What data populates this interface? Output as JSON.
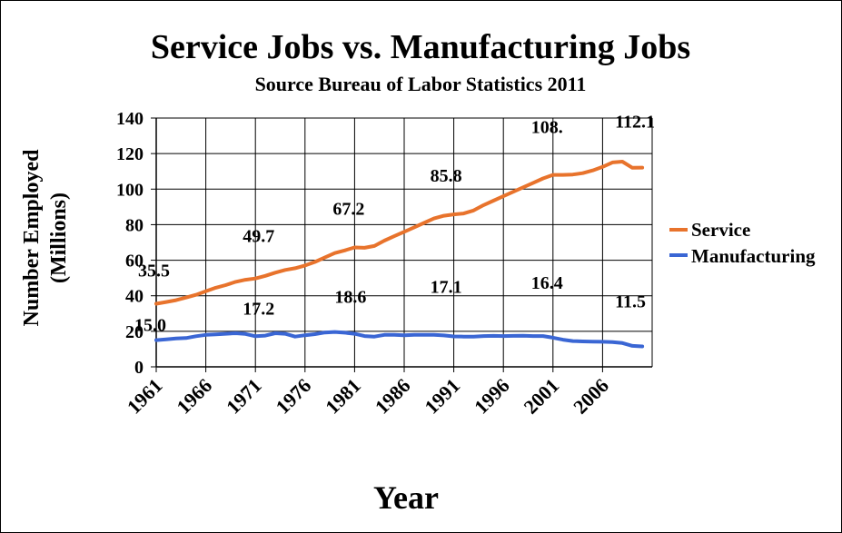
{
  "chart_data": {
    "type": "line",
    "title": "Service Jobs vs. Manufacturing Jobs",
    "subtitle": "Source Bureau of Labor Statistics 2011",
    "xlabel": "Year",
    "ylabel": "Number Employed (Millions)",
    "ylabel_lines": [
      "Number Employed",
      "(Millions)"
    ],
    "ylim": [
      0,
      140
    ],
    "yticks": [
      "0",
      "20",
      "40",
      "60",
      "80",
      "100",
      "120",
      "140"
    ],
    "xlim": [
      1961,
      2011
    ],
    "xticks": [
      "1961",
      "1966",
      "1971",
      "1976",
      "1981",
      "1986",
      "1991",
      "1996",
      "2001",
      "2006"
    ],
    "grid": true,
    "legend_position": "right",
    "x": [
      1961,
      1962,
      1963,
      1964,
      1965,
      1966,
      1967,
      1968,
      1969,
      1970,
      1971,
      1972,
      1973,
      1974,
      1975,
      1976,
      1977,
      1978,
      1979,
      1980,
      1981,
      1982,
      1983,
      1984,
      1985,
      1986,
      1987,
      1988,
      1989,
      1990,
      1991,
      1992,
      1993,
      1994,
      1995,
      1996,
      1997,
      1998,
      1999,
      2000,
      2001,
      2002,
      2003,
      2004,
      2005,
      2006,
      2007,
      2008,
      2009,
      2010
    ],
    "series": [
      {
        "name": "Service",
        "color": "#e8732c",
        "values": [
          35.5,
          36.5,
          37.5,
          39.0,
          40.5,
          42.5,
          44.5,
          46.0,
          47.8,
          49.0,
          49.7,
          51.2,
          53.0,
          54.5,
          55.5,
          57.0,
          59.0,
          61.5,
          64.0,
          65.5,
          67.2,
          67.0,
          68.0,
          71.0,
          73.5,
          76.0,
          78.5,
          81.0,
          83.5,
          85.0,
          85.8,
          86.3,
          88.0,
          91.0,
          93.5,
          96.0,
          98.5,
          101.0,
          103.5,
          106.0,
          108.0,
          108.0,
          108.2,
          109.0,
          110.5,
          112.5,
          115.0,
          115.5,
          112.0,
          112.1
        ]
      },
      {
        "name": "Manufacturing",
        "color": "#3a66d4",
        "values": [
          15.0,
          15.5,
          16.0,
          16.2,
          17.2,
          18.0,
          18.3,
          18.6,
          18.9,
          18.5,
          17.2,
          17.6,
          18.9,
          18.6,
          17.0,
          17.8,
          18.4,
          19.3,
          19.6,
          19.2,
          18.6,
          17.3,
          17.0,
          18.0,
          18.0,
          17.8,
          18.0,
          18.0,
          18.0,
          17.7,
          17.1,
          17.0,
          17.0,
          17.3,
          17.4,
          17.3,
          17.4,
          17.5,
          17.3,
          17.3,
          16.4,
          15.3,
          14.5,
          14.3,
          14.2,
          14.1,
          13.9,
          13.4,
          11.8,
          11.5
        ]
      }
    ],
    "annotations": [
      {
        "text": "35.5",
        "x": 1961,
        "y": 35.5
      },
      {
        "text": "49.7",
        "x": 1971,
        "y": 49.7
      },
      {
        "text": "67.2",
        "x": 1981,
        "y": 67.2
      },
      {
        "text": "85.8",
        "x": 1991,
        "y": 85.8
      },
      {
        "text": "108.",
        "x": 2001,
        "y": 108.0
      },
      {
        "text": "112.1",
        "x": 2010,
        "y": 112.1
      },
      {
        "text": "15.0",
        "x": 1961,
        "y": 15.0
      },
      {
        "text": "17.2",
        "x": 1971,
        "y": 17.2
      },
      {
        "text": "18.6",
        "x": 1981,
        "y": 18.6
      },
      {
        "text": "17.1",
        "x": 1991,
        "y": 17.1
      },
      {
        "text": "16.4",
        "x": 2001,
        "y": 16.4
      },
      {
        "text": "11.5",
        "x": 2010,
        "y": 11.5
      }
    ]
  }
}
